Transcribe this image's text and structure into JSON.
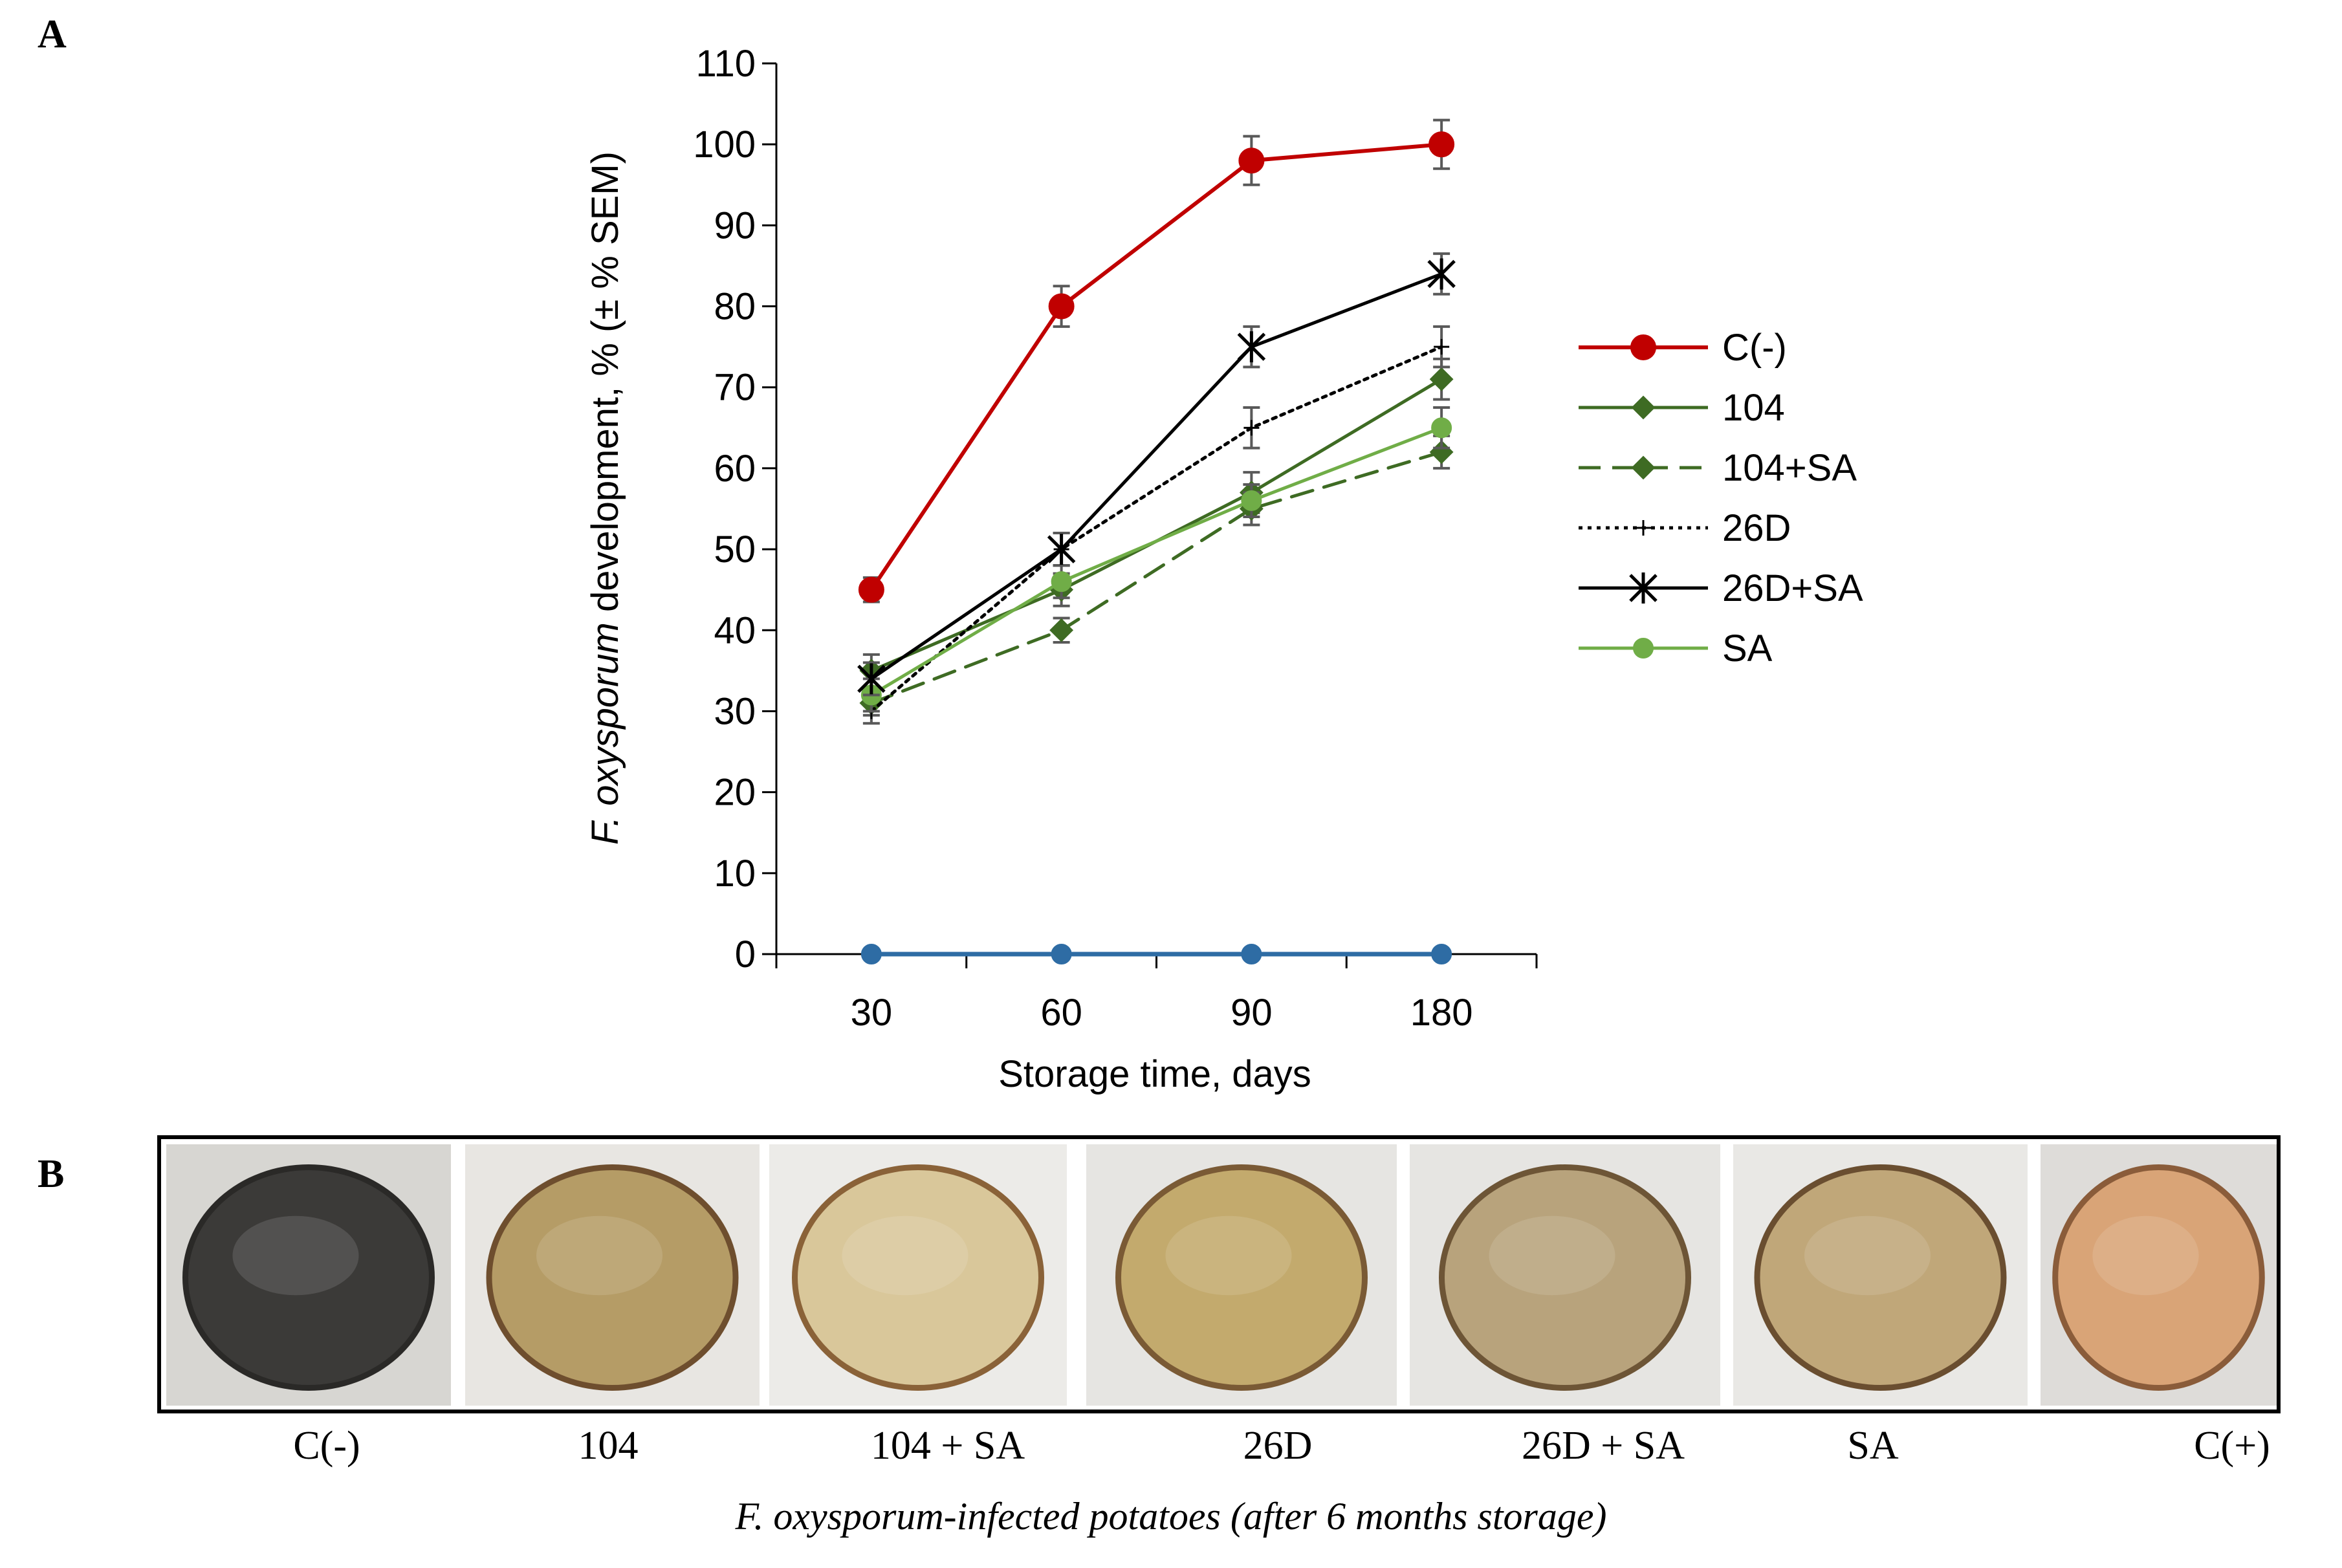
{
  "panel_a_label": "A",
  "panel_b_label": "B",
  "chart_data": {
    "type": "line",
    "ylabel_italic": "F. oxysporum",
    "ylabel_rest": " development, % (± % SEM)",
    "xlabel": "Storage time, days",
    "categories": [
      "30",
      "60",
      "90",
      "180"
    ],
    "ylim": [
      0,
      110
    ],
    "yticks": [
      0,
      10,
      20,
      30,
      40,
      50,
      60,
      70,
      80,
      90,
      100,
      110
    ],
    "series": [
      {
        "name": "C(-)",
        "values": [
          45,
          80,
          98,
          100
        ],
        "errors": [
          1.5,
          2.5,
          3,
          3
        ],
        "color": "#c00000",
        "dash": "solid",
        "marker": "circle-large",
        "in_legend": true
      },
      {
        "name": "104",
        "values": [
          35,
          45,
          57,
          71
        ],
        "errors": [
          2,
          2,
          2.5,
          2.5
        ],
        "color": "#3e6b23",
        "dash": "solid",
        "marker": "diamond",
        "in_legend": true
      },
      {
        "name": "104+SA",
        "values": [
          31,
          40,
          55,
          62
        ],
        "errors": [
          1.5,
          1.5,
          2,
          2
        ],
        "color": "#3e6b23",
        "dash": "dashed",
        "marker": "diamond",
        "in_legend": true
      },
      {
        "name": "26D",
        "values": [
          30,
          50,
          65,
          75
        ],
        "errors": [
          1.5,
          2,
          2.5,
          2.5
        ],
        "color": "#000000",
        "dash": "dotted",
        "marker": "plus",
        "in_legend": true
      },
      {
        "name": "26D+SA",
        "values": [
          34,
          50,
          75,
          84
        ],
        "errors": [
          2,
          2,
          2.5,
          2.5
        ],
        "color": "#000000",
        "dash": "solid",
        "marker": "asterisk",
        "in_legend": true
      },
      {
        "name": "SA",
        "values": [
          32,
          46,
          56,
          65
        ],
        "errors": [
          2,
          2,
          2,
          2.5
        ],
        "color": "#70ad47",
        "dash": "solid",
        "marker": "circle",
        "in_legend": true
      },
      {
        "name": "C(+)",
        "values": [
          0,
          0,
          0,
          0
        ],
        "errors": [
          0,
          0,
          0,
          0
        ],
        "color": "#2e6ca4",
        "dash": "solid",
        "marker": "circle",
        "in_legend": false
      }
    ]
  },
  "photos": {
    "items": [
      {
        "label": "C(-)",
        "color_flesh": "#3b3a38",
        "color_rim": "#2a2927",
        "bg": "#d7d6d2"
      },
      {
        "label": "104",
        "color_flesh": "#b59c66",
        "color_rim": "#6e4e2e",
        "bg": "#e8e6e2"
      },
      {
        "label": "104 + SA",
        "color_flesh": "#d9c79a",
        "color_rim": "#8a6238",
        "bg": "#ecebe8"
      },
      {
        "label": "26D",
        "color_flesh": "#c3aa6d",
        "color_rim": "#7a5a35",
        "bg": "#e6e5e2"
      },
      {
        "label": "26D + SA",
        "color_flesh": "#b8a37c",
        "color_rim": "#6d5536",
        "bg": "#e6e5e2"
      },
      {
        "label": "SA",
        "color_flesh": "#c0a779",
        "color_rim": "#6a4e30",
        "bg": "#e9e8e5"
      },
      {
        "label": "C(+)",
        "color_flesh": "#d9a477",
        "color_rim": "#8a5c3a",
        "bg": "#dedcd9"
      }
    ],
    "caption": "F. oxysporum-infected potatoes (after 6 months storage)"
  }
}
